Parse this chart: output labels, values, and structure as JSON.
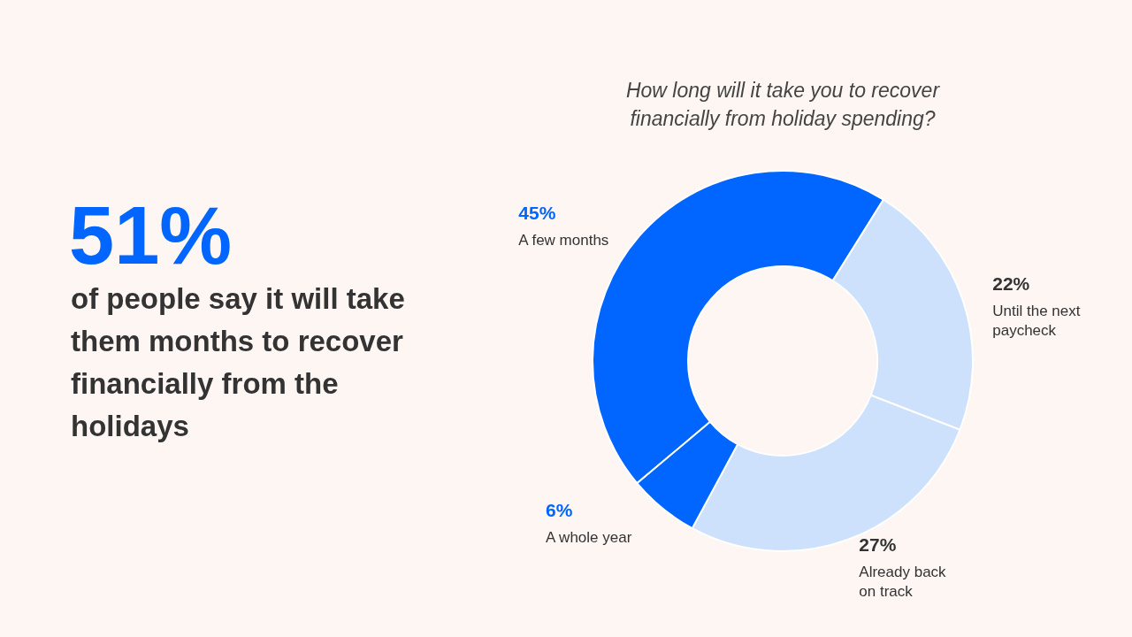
{
  "chart_data": {
    "type": "donut",
    "title": "How long will it take you to recover financially from holiday spending?",
    "categories": [
      "A few months",
      "Until the next paycheck",
      "Already back on track",
      "A whole year"
    ],
    "values": [
      45,
      22,
      27,
      6
    ],
    "value_labels": [
      "45%",
      "22%",
      "27%",
      "6%"
    ],
    "colors": [
      "#0066ff",
      "#cde0fc",
      "#cde0fc",
      "#0066ff"
    ],
    "annotations": [
      "51%",
      "of people say it will take them months to recover financially from the holidays"
    ]
  }
}
